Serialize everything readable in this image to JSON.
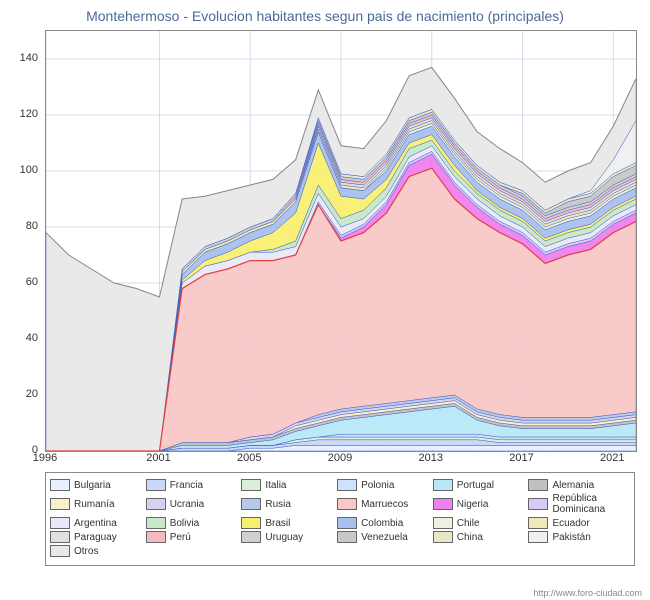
{
  "chart": {
    "type": "area",
    "title": "Montehermoso - Evolucion habitantes segun pais de nacimiento (principales)",
    "title_color": "#4a6a9a",
    "title_fontsize": 14,
    "background_color": "#ffffff",
    "plot_border_color": "#888888",
    "grid_color": "#d8d8e8",
    "x": {
      "min": 1996,
      "max": 2022,
      "ticks": [
        1996,
        2001,
        2005,
        2009,
        2013,
        2017,
        2021
      ],
      "fontsize": 11
    },
    "y": {
      "min": 0,
      "max": 150,
      "ticks": [
        0,
        20,
        40,
        60,
        80,
        100,
        120,
        140
      ],
      "fontsize": 11
    },
    "years": [
      1996,
      1997,
      1998,
      1999,
      2000,
      2001,
      2002,
      2003,
      2004,
      2005,
      2006,
      2007,
      2008,
      2009,
      2010,
      2011,
      2012,
      2013,
      2014,
      2015,
      2016,
      2017,
      2018,
      2019,
      2020,
      2021,
      2022
    ],
    "series": [
      {
        "name": "Bulgaria",
        "color": "#e8f0ff",
        "values": [
          0,
          0,
          0,
          0,
          0,
          0,
          0,
          0,
          0,
          1,
          1,
          2,
          2,
          2,
          2,
          2,
          2,
          2,
          2,
          2,
          2,
          2,
          2,
          2,
          2,
          2,
          2
        ]
      },
      {
        "name": "Francia",
        "color": "#c8d8f8",
        "values": [
          0,
          0,
          0,
          0,
          0,
          0,
          1,
          1,
          1,
          1,
          1,
          1,
          2,
          2,
          2,
          2,
          2,
          2,
          2,
          2,
          1,
          1,
          1,
          1,
          1,
          1,
          1
        ]
      },
      {
        "name": "Italia",
        "color": "#d8f0d8",
        "values": [
          0,
          0,
          0,
          0,
          0,
          0,
          0,
          0,
          0,
          0,
          0,
          1,
          1,
          1,
          1,
          1,
          1,
          1,
          1,
          1,
          1,
          1,
          1,
          1,
          1,
          1,
          1
        ]
      },
      {
        "name": "Polonia",
        "color": "#d0e0ff",
        "values": [
          0,
          0,
          0,
          0,
          0,
          0,
          0,
          0,
          0,
          0,
          0,
          0,
          0,
          1,
          1,
          1,
          1,
          1,
          1,
          1,
          1,
          1,
          1,
          1,
          1,
          1,
          1
        ]
      },
      {
        "name": "Portugal",
        "color": "#b8e8f8",
        "values": [
          0,
          0,
          0,
          0,
          0,
          0,
          1,
          1,
          1,
          1,
          2,
          3,
          4,
          5,
          6,
          7,
          8,
          9,
          10,
          5,
          4,
          3,
          3,
          3,
          3,
          4,
          5
        ]
      },
      {
        "name": "Alemania",
        "color": "#c0c0c0",
        "values": [
          0,
          0,
          0,
          0,
          0,
          0,
          1,
          1,
          1,
          1,
          1,
          1,
          1,
          1,
          1,
          1,
          1,
          1,
          1,
          1,
          1,
          1,
          1,
          1,
          1,
          1,
          1
        ]
      },
      {
        "name": "Rumanía",
        "color": "#f8f0c8",
        "values": [
          0,
          0,
          0,
          0,
          0,
          0,
          0,
          0,
          0,
          0,
          0,
          1,
          1,
          1,
          1,
          1,
          1,
          1,
          1,
          1,
          1,
          1,
          1,
          1,
          1,
          1,
          1
        ]
      },
      {
        "name": "Ucrania",
        "color": "#d8d0f0",
        "values": [
          0,
          0,
          0,
          0,
          0,
          0,
          0,
          0,
          0,
          1,
          1,
          1,
          1,
          1,
          1,
          1,
          1,
          1,
          1,
          1,
          1,
          1,
          1,
          1,
          1,
          1,
          1
        ]
      },
      {
        "name": "Rusia",
        "color": "#b8c8e8",
        "values": [
          0,
          0,
          0,
          0,
          0,
          0,
          0,
          0,
          0,
          0,
          0,
          0,
          1,
          1,
          1,
          1,
          1,
          1,
          1,
          1,
          1,
          1,
          1,
          1,
          1,
          1,
          1
        ]
      },
      {
        "name": "Marruecos",
        "color": "#f8c8c8",
        "values": [
          0,
          0,
          0,
          0,
          0,
          0,
          55,
          60,
          62,
          63,
          62,
          60,
          75,
          60,
          62,
          68,
          80,
          82,
          70,
          68,
          65,
          62,
          55,
          58,
          60,
          65,
          68
        ]
      },
      {
        "name": "Nigeria",
        "color": "#f080f0",
        "values": [
          0,
          0,
          0,
          0,
          0,
          0,
          0,
          0,
          0,
          0,
          0,
          0,
          0,
          1,
          2,
          3,
          4,
          5,
          5,
          4,
          3,
          3,
          3,
          3,
          3,
          3,
          3
        ]
      },
      {
        "name": "República Dominicana",
        "color": "#d8c8f8",
        "values": [
          0,
          0,
          0,
          0,
          0,
          0,
          0,
          0,
          0,
          0,
          0,
          0,
          1,
          1,
          1,
          1,
          1,
          1,
          1,
          1,
          1,
          1,
          1,
          1,
          1,
          1,
          1
        ]
      },
      {
        "name": "Argentina",
        "color": "#e8e8f8",
        "values": [
          0,
          0,
          0,
          0,
          0,
          0,
          2,
          3,
          3,
          3,
          3,
          3,
          3,
          3,
          2,
          2,
          2,
          2,
          2,
          2,
          2,
          2,
          2,
          2,
          2,
          2,
          2
        ]
      },
      {
        "name": "Bolivia",
        "color": "#c8e8c8",
        "values": [
          0,
          0,
          0,
          0,
          0,
          0,
          0,
          0,
          0,
          0,
          1,
          2,
          3,
          3,
          3,
          3,
          3,
          2,
          2,
          2,
          2,
          2,
          2,
          2,
          2,
          2,
          2
        ]
      },
      {
        "name": "Brasil",
        "color": "#f8f070",
        "values": [
          0,
          0,
          0,
          0,
          0,
          0,
          1,
          2,
          3,
          4,
          6,
          10,
          15,
          8,
          4,
          3,
          2,
          2,
          2,
          1,
          1,
          1,
          1,
          1,
          1,
          1,
          1
        ]
      },
      {
        "name": "Colombia",
        "color": "#a8c0f0",
        "values": [
          0,
          0,
          0,
          0,
          0,
          0,
          2,
          3,
          3,
          3,
          3,
          4,
          4,
          3,
          3,
          3,
          3,
          3,
          3,
          3,
          3,
          3,
          3,
          3,
          3,
          3,
          3
        ]
      },
      {
        "name": "Chile",
        "color": "#f0f0e0",
        "values": [
          0,
          0,
          0,
          0,
          0,
          0,
          0,
          0,
          0,
          0,
          0,
          0,
          0,
          0,
          0,
          1,
          1,
          1,
          1,
          1,
          1,
          1,
          1,
          1,
          1,
          1,
          1
        ]
      },
      {
        "name": "Ecuador",
        "color": "#f0e8b8",
        "values": [
          0,
          0,
          0,
          0,
          0,
          0,
          1,
          1,
          1,
          1,
          1,
          1,
          1,
          1,
          1,
          1,
          1,
          1,
          1,
          1,
          1,
          1,
          1,
          1,
          1,
          1,
          1
        ]
      },
      {
        "name": "Paraguay",
        "color": "#e0e0e0",
        "values": [
          0,
          0,
          0,
          0,
          0,
          0,
          0,
          0,
          0,
          0,
          0,
          0,
          1,
          1,
          1,
          1,
          1,
          1,
          1,
          1,
          1,
          1,
          1,
          1,
          1,
          1,
          1
        ]
      },
      {
        "name": "Perú",
        "color": "#f8b8c0",
        "values": [
          0,
          0,
          0,
          0,
          0,
          0,
          0,
          0,
          0,
          0,
          0,
          1,
          1,
          1,
          1,
          1,
          1,
          1,
          1,
          1,
          1,
          1,
          1,
          1,
          1,
          1,
          1
        ]
      },
      {
        "name": "Uruguay",
        "color": "#d0d0d0",
        "values": [
          0,
          0,
          0,
          0,
          0,
          0,
          1,
          1,
          1,
          1,
          1,
          1,
          1,
          1,
          1,
          1,
          1,
          1,
          1,
          1,
          1,
          1,
          1,
          1,
          1,
          1,
          1
        ]
      },
      {
        "name": "Venezuela",
        "color": "#c8c8c8",
        "values": [
          0,
          0,
          0,
          0,
          0,
          0,
          0,
          0,
          0,
          0,
          0,
          0,
          0,
          0,
          0,
          0,
          0,
          0,
          0,
          0,
          0,
          1,
          1,
          2,
          2,
          3,
          3
        ]
      },
      {
        "name": "China",
        "color": "#e8e8c8",
        "values": [
          0,
          0,
          0,
          0,
          0,
          0,
          0,
          0,
          0,
          0,
          0,
          0,
          1,
          1,
          1,
          1,
          1,
          1,
          1,
          1,
          1,
          1,
          1,
          1,
          1,
          1,
          1
        ]
      },
      {
        "name": "Pakistán",
        "color": "#f0f0f0",
        "values": [
          0,
          0,
          0,
          0,
          0,
          0,
          0,
          0,
          0,
          0,
          0,
          0,
          0,
          0,
          0,
          0,
          0,
          0,
          0,
          0,
          0,
          0,
          0,
          0,
          1,
          5,
          15
        ]
      },
      {
        "name": "Otros",
        "color": "#e8e8e8",
        "values": [
          78,
          70,
          65,
          60,
          58,
          55,
          25,
          18,
          17,
          15,
          14,
          12,
          10,
          10,
          10,
          12,
          15,
          15,
          15,
          12,
          12,
          10,
          10,
          10,
          10,
          12,
          15
        ]
      }
    ],
    "line_color_blue": "#4060c0",
    "line_color_red": "#e04040",
    "attribution": "http://www.foro-ciudad.com"
  }
}
